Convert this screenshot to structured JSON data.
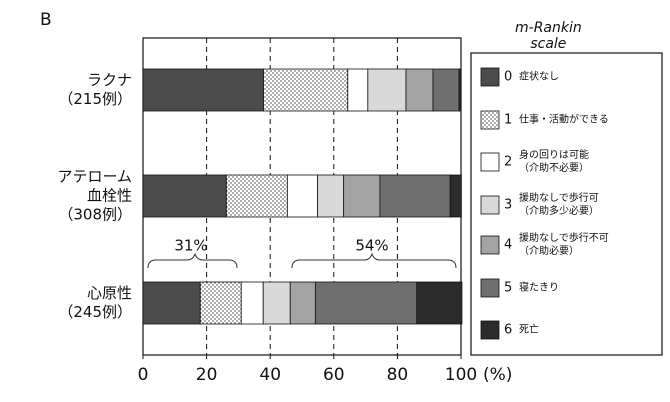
{
  "chart_data": {
    "type": "stacked-bar-horizontal",
    "panel_label": "B",
    "legend_title": "m-Rankin\nscale",
    "categories": [
      "ラクナ\n（215例）",
      "アテローム\n血栓性\n（308例）",
      "心原性\n（245例）"
    ],
    "series": [
      {
        "code": "0",
        "name": "症状なし",
        "color": "#4b4b4b",
        "values": [
          37.9,
          26.2,
          18.0
        ]
      },
      {
        "code": "1",
        "name": "仕事・活動ができる",
        "color": "#ffffff",
        "pattern": "dots",
        "values": [
          26.5,
          19.2,
          12.9
        ]
      },
      {
        "code": "2",
        "name": "身の回りは可能\n（介助不必要）",
        "color": "#ffffff",
        "values": [
          6.3,
          9.5,
          6.9
        ]
      },
      {
        "code": "3",
        "name": "援助なしで歩行可\n（介助多少必要）",
        "color": "#d9d9d9",
        "values": [
          12.0,
          8.2,
          8.5
        ]
      },
      {
        "code": "4",
        "name": "援助なしで歩行不可\n（介助必要）",
        "color": "#a3a3a3",
        "values": [
          8.5,
          11.4,
          7.9
        ]
      },
      {
        "code": "5",
        "name": "寝たきり",
        "color": "#6f6f6f",
        "values": [
          8.2,
          22.1,
          31.9
        ]
      },
      {
        "code": "6",
        "name": "死亡",
        "color": "#2b2b2b",
        "values": [
          0.6,
          3.5,
          14.2
        ]
      }
    ],
    "annotations": [
      "31%",
      "54%"
    ],
    "xlim": [
      0,
      100
    ],
    "xticks": [
      0,
      20,
      40,
      60,
      80,
      100
    ],
    "xlabel": "(%)",
    "grid": true
  }
}
